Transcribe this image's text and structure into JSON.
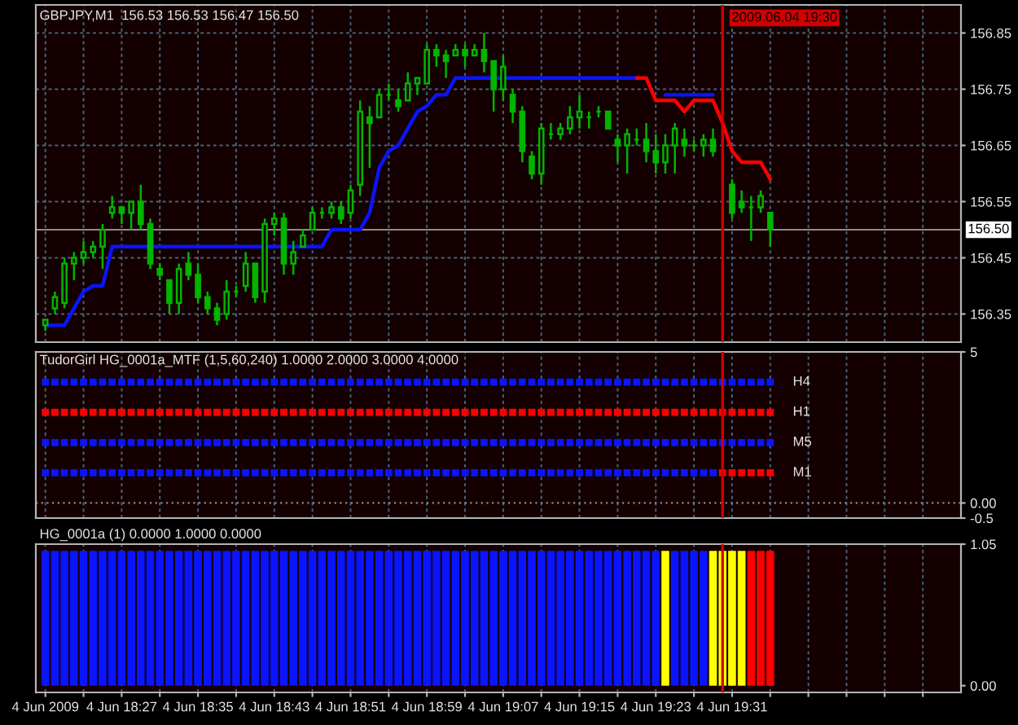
{
  "chart_data": [
    {
      "type": "candlestick",
      "title": "GBPJPY,M1  156.53 156.53 156.47 156.50",
      "x": [
        "2009-06-04T18:19",
        "2009-06-04T18:20",
        "2009-06-04T18:21",
        "2009-06-04T18:22",
        "2009-06-04T18:23",
        "2009-06-04T18:24",
        "2009-06-04T18:25",
        "2009-06-04T18:26",
        "2009-06-04T18:27",
        "2009-06-04T18:28",
        "2009-06-04T18:29",
        "2009-06-04T18:30",
        "2009-06-04T18:31",
        "2009-06-04T18:32",
        "2009-06-04T18:33",
        "2009-06-04T18:34",
        "2009-06-04T18:35",
        "2009-06-04T18:36",
        "2009-06-04T18:37",
        "2009-06-04T18:38",
        "2009-06-04T18:39",
        "2009-06-04T18:40",
        "2009-06-04T18:41",
        "2009-06-04T18:42",
        "2009-06-04T18:43",
        "2009-06-04T18:44",
        "2009-06-04T18:45",
        "2009-06-04T18:46",
        "2009-06-04T18:47",
        "2009-06-04T18:48",
        "2009-06-04T18:49",
        "2009-06-04T18:50",
        "2009-06-04T18:51",
        "2009-06-04T18:52",
        "2009-06-04T18:53",
        "2009-06-04T18:54",
        "2009-06-04T18:55",
        "2009-06-04T18:56",
        "2009-06-04T18:57",
        "2009-06-04T18:58",
        "2009-06-04T18:59",
        "2009-06-04T19:00",
        "2009-06-04T19:01",
        "2009-06-04T19:02",
        "2009-06-04T19:03",
        "2009-06-04T19:04",
        "2009-06-04T19:05",
        "2009-06-04T19:06",
        "2009-06-04T19:07",
        "2009-06-04T19:08",
        "2009-06-04T19:09",
        "2009-06-04T19:10",
        "2009-06-04T19:11",
        "2009-06-04T19:12",
        "2009-06-04T19:13",
        "2009-06-04T19:14",
        "2009-06-04T19:15",
        "2009-06-04T19:16",
        "2009-06-04T19:17",
        "2009-06-04T19:18",
        "2009-06-04T19:19",
        "2009-06-04T19:20",
        "2009-06-04T19:21",
        "2009-06-04T19:22",
        "2009-06-04T19:23",
        "2009-06-04T19:24",
        "2009-06-04T19:25",
        "2009-06-04T19:26",
        "2009-06-04T19:27",
        "2009-06-04T19:28",
        "2009-06-04T19:29",
        "2009-06-04T19:30",
        "2009-06-04T19:31",
        "2009-06-04T19:32",
        "2009-06-04T19:33",
        "2009-06-04T19:34",
        "2009-06-04T19:35"
      ],
      "ohlc": [
        [
          156.33,
          156.34,
          156.32,
          156.34
        ],
        [
          156.36,
          156.39,
          156.35,
          156.38
        ],
        [
          156.37,
          156.45,
          156.36,
          156.44
        ],
        [
          156.44,
          156.46,
          156.41,
          156.45
        ],
        [
          156.45,
          156.48,
          156.44,
          156.46
        ],
        [
          156.46,
          156.48,
          156.45,
          156.47
        ],
        [
          156.47,
          156.51,
          156.43,
          156.5
        ],
        [
          156.53,
          156.56,
          156.52,
          156.54
        ],
        [
          156.54,
          156.54,
          156.51,
          156.53
        ],
        [
          156.53,
          156.55,
          156.5,
          156.55
        ],
        [
          156.55,
          156.58,
          156.5,
          156.51
        ],
        [
          156.51,
          156.52,
          156.43,
          156.44
        ],
        [
          156.43,
          156.44,
          156.41,
          156.42
        ],
        [
          156.41,
          156.41,
          156.35,
          156.37
        ],
        [
          156.37,
          156.44,
          156.35,
          156.43
        ],
        [
          156.44,
          156.46,
          156.41,
          156.42
        ],
        [
          156.42,
          156.44,
          156.37,
          156.38
        ],
        [
          156.38,
          156.39,
          156.35,
          156.36
        ],
        [
          156.36,
          156.37,
          156.33,
          156.34
        ],
        [
          156.35,
          156.41,
          156.34,
          156.39
        ],
        [
          156.39,
          156.4,
          156.38,
          156.39
        ],
        [
          156.4,
          156.46,
          156.39,
          156.44
        ],
        [
          156.44,
          156.44,
          156.37,
          156.38
        ],
        [
          156.39,
          156.52,
          156.37,
          156.51
        ],
        [
          156.51,
          156.53,
          156.49,
          156.52
        ],
        [
          156.52,
          156.53,
          156.42,
          156.44
        ],
        [
          156.44,
          156.48,
          156.42,
          156.46
        ],
        [
          156.47,
          156.5,
          156.47,
          156.49
        ],
        [
          156.5,
          156.54,
          156.5,
          156.53
        ],
        [
          156.53,
          156.54,
          156.52,
          156.53
        ],
        [
          156.53,
          156.55,
          156.52,
          156.54
        ],
        [
          156.54,
          156.55,
          156.51,
          156.52
        ],
        [
          156.53,
          156.58,
          156.52,
          156.57
        ],
        [
          156.58,
          156.73,
          156.56,
          156.71
        ],
        [
          156.7,
          156.72,
          156.61,
          156.69
        ],
        [
          156.7,
          156.75,
          156.7,
          156.74
        ],
        [
          156.74,
          156.76,
          156.73,
          156.74
        ],
        [
          156.73,
          156.75,
          156.71,
          156.72
        ],
        [
          156.73,
          156.78,
          156.73,
          156.76
        ],
        [
          156.76,
          156.77,
          156.74,
          156.77
        ],
        [
          156.76,
          156.83,
          156.76,
          156.82
        ],
        [
          156.82,
          156.83,
          156.79,
          156.81
        ],
        [
          156.81,
          156.82,
          156.77,
          156.8
        ],
        [
          156.81,
          156.83,
          156.81,
          156.82
        ],
        [
          156.82,
          156.83,
          156.79,
          156.81
        ],
        [
          156.81,
          156.83,
          156.81,
          156.82
        ],
        [
          156.82,
          156.85,
          156.78,
          156.8
        ],
        [
          156.8,
          156.8,
          156.71,
          156.75
        ],
        [
          156.75,
          156.81,
          156.73,
          156.79
        ],
        [
          156.74,
          156.75,
          156.69,
          156.71
        ],
        [
          156.71,
          156.72,
          156.62,
          156.64
        ],
        [
          156.63,
          156.64,
          156.59,
          156.6
        ],
        [
          156.6,
          156.69,
          156.58,
          156.68
        ],
        [
          156.67,
          156.69,
          156.66,
          156.67
        ],
        [
          156.67,
          156.69,
          156.66,
          156.68
        ],
        [
          156.68,
          156.72,
          156.67,
          156.7
        ],
        [
          156.7,
          156.74,
          156.68,
          156.71
        ],
        [
          156.7,
          156.71,
          156.68,
          156.7
        ],
        [
          156.71,
          156.72,
          156.7,
          156.71
        ],
        [
          156.71,
          156.71,
          156.68,
          156.68
        ],
        [
          156.66,
          156.67,
          156.62,
          156.65
        ],
        [
          156.65,
          156.68,
          156.6,
          156.67
        ],
        [
          156.66,
          156.68,
          156.65,
          156.66
        ],
        [
          156.66,
          156.69,
          156.62,
          156.64
        ],
        [
          156.64,
          156.67,
          156.6,
          156.62
        ],
        [
          156.62,
          156.67,
          156.6,
          156.65
        ],
        [
          156.65,
          156.69,
          156.6,
          156.68
        ],
        [
          156.66,
          156.68,
          156.63,
          156.65
        ],
        [
          156.65,
          156.66,
          156.64,
          156.65
        ],
        [
          156.65,
          156.67,
          156.63,
          156.66
        ],
        [
          156.66,
          156.68,
          156.63,
          156.64
        ],
        null,
        [
          156.58,
          156.59,
          156.52,
          156.53
        ],
        [
          156.55,
          156.57,
          156.53,
          156.54
        ],
        [
          156.54,
          156.56,
          156.48,
          156.54
        ],
        [
          156.54,
          156.57,
          156.53,
          156.56
        ],
        [
          156.53,
          156.53,
          156.47,
          156.5
        ]
      ],
      "color": "#00b400",
      "series": [
        {
          "type": "line",
          "color": "#0a14ff",
          "values": [
            156.33,
            156.33,
            156.33,
            156.36,
            156.39,
            156.4,
            156.4,
            156.47,
            156.47,
            156.47,
            156.47,
            156.47,
            156.47,
            156.47,
            156.47,
            156.47,
            156.47,
            156.47,
            156.47,
            156.47,
            156.47,
            156.47,
            156.47,
            156.47,
            156.47,
            156.47,
            156.47,
            156.47,
            156.47,
            156.47,
            156.5,
            156.5,
            156.5,
            156.5,
            156.53,
            156.61,
            156.64,
            156.65,
            156.68,
            156.71,
            156.72,
            156.74,
            156.74,
            156.77,
            156.77,
            156.77,
            156.77,
            156.77,
            156.77,
            156.77,
            156.77,
            156.77,
            156.77,
            156.77,
            156.77,
            156.77,
            156.77,
            156.77,
            156.77,
            156.77,
            156.77,
            156.77,
            156.77,
            null,
            null,
            156.74,
            156.74,
            156.74,
            156.74,
            156.74,
            156.74,
            null,
            null,
            null,
            null,
            null,
            null
          ]
        },
        {
          "type": "line",
          "color": "#ff0000",
          "values": [
            null,
            null,
            null,
            null,
            null,
            null,
            null,
            null,
            null,
            null,
            null,
            null,
            null,
            null,
            null,
            null,
            null,
            null,
            null,
            null,
            null,
            null,
            null,
            null,
            null,
            null,
            null,
            null,
            null,
            null,
            null,
            null,
            null,
            null,
            null,
            null,
            null,
            null,
            null,
            null,
            null,
            null,
            null,
            null,
            null,
            null,
            null,
            null,
            null,
            null,
            null,
            null,
            null,
            null,
            null,
            null,
            null,
            null,
            null,
            null,
            null,
            null,
            156.77,
            156.77,
            156.73,
            156.73,
            156.73,
            156.71,
            156.73,
            156.73,
            156.73,
            156.69,
            156.64,
            156.62,
            156.62,
            156.62,
            156.59
          ]
        }
      ],
      "xlim": [
        "2009-06-04T18:18",
        "2009-06-04T19:55"
      ],
      "xticks": [
        {
          "value": "2009-06-04T18:19",
          "label": null
        },
        {
          "value": "2009-06-04T18:23",
          "label": null
        },
        {
          "value": "2009-06-04T18:27",
          "label": null
        },
        {
          "value": "2009-06-04T18:31",
          "label": null
        },
        {
          "value": "2009-06-04T18:35",
          "label": null
        },
        {
          "value": "2009-06-04T18:39",
          "label": null
        },
        {
          "value": "2009-06-04T18:43",
          "label": null
        },
        {
          "value": "2009-06-04T18:47",
          "label": null
        },
        {
          "value": "2009-06-04T18:51",
          "label": null
        },
        {
          "value": "2009-06-04T18:55",
          "label": null
        },
        {
          "value": "2009-06-04T18:59",
          "label": null
        },
        {
          "value": "2009-06-04T19:03",
          "label": null
        },
        {
          "value": "2009-06-04T19:07",
          "label": null
        },
        {
          "value": "2009-06-04T19:11",
          "label": null
        },
        {
          "value": "2009-06-04T19:15",
          "label": null
        },
        {
          "value": "2009-06-04T19:19",
          "label": null
        },
        {
          "value": "2009-06-04T19:23",
          "label": null
        },
        {
          "value": "2009-06-04T19:27",
          "label": null
        },
        {
          "value": "2009-06-04T19:31",
          "label": null
        },
        {
          "value": "2009-06-04T19:35",
          "label": null
        },
        {
          "value": "2009-06-04T19:39",
          "label": null
        },
        {
          "value": "2009-06-04T19:43",
          "label": null
        },
        {
          "value": "2009-06-04T19:47",
          "label": null
        },
        {
          "value": "2009-06-04T19:51",
          "label": null
        }
      ],
      "ylim": [
        156.3,
        156.9
      ],
      "yticks": [
        156.35,
        156.45,
        156.55,
        156.65,
        156.75,
        156.85
      ],
      "grid": true,
      "ref_lines": [
        {
          "axis": "y",
          "value": 156.5,
          "label": "156.50",
          "color": "#8c8c8c"
        },
        {
          "axis": "x",
          "value": "2009-06-04T19:30",
          "label": "2009.06.04 19:30",
          "color": "#d20000"
        }
      ],
      "tick_labels": "y"
    },
    {
      "type": "scatter",
      "title": "TudorGirl HG_0001a_MTF (1,5,60,240) 1.0000 2.0000 3.0000 4.0000",
      "x": [
        "2009-06-04T18:19",
        "2009-06-04T18:20",
        "2009-06-04T18:21",
        "2009-06-04T18:22",
        "2009-06-04T18:23",
        "2009-06-04T18:24",
        "2009-06-04T18:25",
        "2009-06-04T18:26",
        "2009-06-04T18:27",
        "2009-06-04T18:28",
        "2009-06-04T18:29",
        "2009-06-04T18:30",
        "2009-06-04T18:31",
        "2009-06-04T18:32",
        "2009-06-04T18:33",
        "2009-06-04T18:34",
        "2009-06-04T18:35",
        "2009-06-04T18:36",
        "2009-06-04T18:37",
        "2009-06-04T18:38",
        "2009-06-04T18:39",
        "2009-06-04T18:40",
        "2009-06-04T18:41",
        "2009-06-04T18:42",
        "2009-06-04T18:43",
        "2009-06-04T18:44",
        "2009-06-04T18:45",
        "2009-06-04T18:46",
        "2009-06-04T18:47",
        "2009-06-04T18:48",
        "2009-06-04T18:49",
        "2009-06-04T18:50",
        "2009-06-04T18:51",
        "2009-06-04T18:52",
        "2009-06-04T18:53",
        "2009-06-04T18:54",
        "2009-06-04T18:55",
        "2009-06-04T18:56",
        "2009-06-04T18:57",
        "2009-06-04T18:58",
        "2009-06-04T18:59",
        "2009-06-04T19:00",
        "2009-06-04T19:01",
        "2009-06-04T19:02",
        "2009-06-04T19:03",
        "2009-06-04T19:04",
        "2009-06-04T19:05",
        "2009-06-04T19:06",
        "2009-06-04T19:07",
        "2009-06-04T19:08",
        "2009-06-04T19:09",
        "2009-06-04T19:10",
        "2009-06-04T19:11",
        "2009-06-04T19:12",
        "2009-06-04T19:13",
        "2009-06-04T19:14",
        "2009-06-04T19:15",
        "2009-06-04T19:16",
        "2009-06-04T19:17",
        "2009-06-04T19:18",
        "2009-06-04T19:19",
        "2009-06-04T19:20",
        "2009-06-04T19:21",
        "2009-06-04T19:22",
        "2009-06-04T19:23",
        "2009-06-04T19:24",
        "2009-06-04T19:25",
        "2009-06-04T19:26",
        "2009-06-04T19:27",
        "2009-06-04T19:28",
        "2009-06-04T19:29",
        "2009-06-04T19:30",
        "2009-06-04T19:31",
        "2009-06-04T19:32",
        "2009-06-04T19:33",
        "2009-06-04T19:34",
        "2009-06-04T19:35"
      ],
      "series": [
        {
          "name": "H4",
          "color": "#0a14ff",
          "values": [
            4,
            4,
            4,
            4,
            4,
            4,
            4,
            4,
            4,
            4,
            4,
            4,
            4,
            4,
            4,
            4,
            4,
            4,
            4,
            4,
            4,
            4,
            4,
            4,
            4,
            4,
            4,
            4,
            4,
            4,
            4,
            4,
            4,
            4,
            4,
            4,
            4,
            4,
            4,
            4,
            4,
            4,
            4,
            4,
            4,
            4,
            4,
            4,
            4,
            4,
            4,
            4,
            4,
            4,
            4,
            4,
            4,
            4,
            4,
            4,
            4,
            4,
            4,
            4,
            4,
            4,
            4,
            4,
            4,
            4,
            4,
            4,
            4,
            4,
            4,
            4,
            4
          ]
        },
        {
          "name": "H1",
          "color": "#ff0000",
          "values": [
            3,
            3,
            3,
            3,
            3,
            3,
            3,
            3,
            3,
            3,
            3,
            3,
            3,
            3,
            3,
            3,
            3,
            3,
            3,
            3,
            3,
            3,
            3,
            3,
            3,
            3,
            3,
            3,
            3,
            3,
            3,
            3,
            3,
            3,
            3,
            3,
            3,
            3,
            3,
            3,
            3,
            3,
            3,
            3,
            3,
            3,
            3,
            3,
            3,
            3,
            3,
            3,
            3,
            3,
            3,
            3,
            3,
            3,
            3,
            3,
            3,
            3,
            3,
            3,
            3,
            3,
            3,
            3,
            3,
            3,
            3,
            3,
            3,
            3,
            3,
            3,
            3
          ]
        },
        {
          "name": "M5",
          "color": "#0a14ff",
          "values": [
            2,
            2,
            2,
            2,
            2,
            2,
            2,
            2,
            2,
            2,
            2,
            2,
            2,
            2,
            2,
            2,
            2,
            2,
            2,
            2,
            2,
            2,
            2,
            2,
            2,
            2,
            2,
            2,
            2,
            2,
            2,
            2,
            2,
            2,
            2,
            2,
            2,
            2,
            2,
            2,
            2,
            2,
            2,
            2,
            2,
            2,
            2,
            2,
            2,
            2,
            2,
            2,
            2,
            2,
            2,
            2,
            2,
            2,
            2,
            2,
            2,
            2,
            2,
            2,
            2,
            2,
            2,
            2,
            2,
            2,
            2,
            2,
            2,
            2,
            2,
            2,
            2
          ]
        },
        {
          "name": "M1",
          "values": [
            1,
            1,
            1,
            1,
            1,
            1,
            1,
            1,
            1,
            1,
            1,
            1,
            1,
            1,
            1,
            1,
            1,
            1,
            1,
            1,
            1,
            1,
            1,
            1,
            1,
            1,
            1,
            1,
            1,
            1,
            1,
            1,
            1,
            1,
            1,
            1,
            1,
            1,
            1,
            1,
            1,
            1,
            1,
            1,
            1,
            1,
            1,
            1,
            1,
            1,
            1,
            1,
            1,
            1,
            1,
            1,
            1,
            1,
            1,
            1,
            1,
            1,
            1,
            1,
            1,
            1,
            1,
            1,
            1,
            1,
            1,
            1,
            1,
            1,
            1,
            1,
            1
          ],
          "colors": [
            "#0a14ff",
            "#0a14ff",
            "#0a14ff",
            "#0a14ff",
            "#0a14ff",
            "#0a14ff",
            "#0a14ff",
            "#0a14ff",
            "#0a14ff",
            "#0a14ff",
            "#0a14ff",
            "#0a14ff",
            "#0a14ff",
            "#0a14ff",
            "#0a14ff",
            "#0a14ff",
            "#0a14ff",
            "#0a14ff",
            "#0a14ff",
            "#0a14ff",
            "#0a14ff",
            "#0a14ff",
            "#0a14ff",
            "#0a14ff",
            "#0a14ff",
            "#0a14ff",
            "#0a14ff",
            "#0a14ff",
            "#0a14ff",
            "#0a14ff",
            "#0a14ff",
            "#0a14ff",
            "#0a14ff",
            "#0a14ff",
            "#0a14ff",
            "#0a14ff",
            "#0a14ff",
            "#0a14ff",
            "#0a14ff",
            "#0a14ff",
            "#0a14ff",
            "#0a14ff",
            "#0a14ff",
            "#0a14ff",
            "#0a14ff",
            "#0a14ff",
            "#0a14ff",
            "#0a14ff",
            "#0a14ff",
            "#0a14ff",
            "#0a14ff",
            "#0a14ff",
            "#0a14ff",
            "#0a14ff",
            "#0a14ff",
            "#0a14ff",
            "#0a14ff",
            "#0a14ff",
            "#0a14ff",
            "#0a14ff",
            "#0a14ff",
            "#0a14ff",
            "#0a14ff",
            "#0a14ff",
            "#0a14ff",
            "#0a14ff",
            "#0a14ff",
            "#0a14ff",
            "#0a14ff",
            "#0a14ff",
            "#0a14ff",
            "#ff0000",
            "#ff0000",
            "#ff0000",
            "#ff0000",
            "#ff0000",
            "#ff0000"
          ]
        }
      ],
      "marker": "square",
      "xlim": [
        "2009-06-04T18:18",
        "2009-06-04T19:55"
      ],
      "xticks": [
        {
          "value": "2009-06-04T18:19",
          "label": null
        },
        {
          "value": "2009-06-04T18:23",
          "label": null
        },
        {
          "value": "2009-06-04T18:27",
          "label": null
        },
        {
          "value": "2009-06-04T18:31",
          "label": null
        },
        {
          "value": "2009-06-04T18:35",
          "label": null
        },
        {
          "value": "2009-06-04T18:39",
          "label": null
        },
        {
          "value": "2009-06-04T18:43",
          "label": null
        },
        {
          "value": "2009-06-04T18:47",
          "label": null
        },
        {
          "value": "2009-06-04T18:51",
          "label": null
        },
        {
          "value": "2009-06-04T18:55",
          "label": null
        },
        {
          "value": "2009-06-04T18:59",
          "label": null
        },
        {
          "value": "2009-06-04T19:03",
          "label": null
        },
        {
          "value": "2009-06-04T19:07",
          "label": null
        },
        {
          "value": "2009-06-04T19:11",
          "label": null
        },
        {
          "value": "2009-06-04T19:15",
          "label": null
        },
        {
          "value": "2009-06-04T19:19",
          "label": null
        },
        {
          "value": "2009-06-04T19:23",
          "label": null
        },
        {
          "value": "2009-06-04T19:27",
          "label": null
        },
        {
          "value": "2009-06-04T19:31",
          "label": null
        },
        {
          "value": "2009-06-04T19:35",
          "label": null
        },
        {
          "value": "2009-06-04T19:39",
          "label": null
        },
        {
          "value": "2009-06-04T19:43",
          "label": null
        },
        {
          "value": "2009-06-04T19:47",
          "label": null
        },
        {
          "value": "2009-06-04T19:51",
          "label": null
        }
      ],
      "ylim": [
        -0.5,
        5
      ],
      "yticks": [
        5,
        {
          "value": 0,
          "label": "0.00"
        },
        -0.5
      ],
      "grid": "x",
      "ref_lines": [
        {
          "axis": "y",
          "value": 0,
          "color": "#8c8c8c",
          "line_style": "dotted"
        },
        {
          "axis": "x",
          "value": "2009-06-04T19:30",
          "color": "#d20000"
        }
      ],
      "tick_labels": "y"
    },
    {
      "type": "bar",
      "title": "HG_0001a (1) 0.0000 1.0000 0.0000",
      "x": [
        "2009-06-04T18:19",
        "2009-06-04T18:20",
        "2009-06-04T18:21",
        "2009-06-04T18:22",
        "2009-06-04T18:23",
        "2009-06-04T18:24",
        "2009-06-04T18:25",
        "2009-06-04T18:26",
        "2009-06-04T18:27",
        "2009-06-04T18:28",
        "2009-06-04T18:29",
        "2009-06-04T18:30",
        "2009-06-04T18:31",
        "2009-06-04T18:32",
        "2009-06-04T18:33",
        "2009-06-04T18:34",
        "2009-06-04T18:35",
        "2009-06-04T18:36",
        "2009-06-04T18:37",
        "2009-06-04T18:38",
        "2009-06-04T18:39",
        "2009-06-04T18:40",
        "2009-06-04T18:41",
        "2009-06-04T18:42",
        "2009-06-04T18:43",
        "2009-06-04T18:44",
        "2009-06-04T18:45",
        "2009-06-04T18:46",
        "2009-06-04T18:47",
        "2009-06-04T18:48",
        "2009-06-04T18:49",
        "2009-06-04T18:50",
        "2009-06-04T18:51",
        "2009-06-04T18:52",
        "2009-06-04T18:53",
        "2009-06-04T18:54",
        "2009-06-04T18:55",
        "2009-06-04T18:56",
        "2009-06-04T18:57",
        "2009-06-04T18:58",
        "2009-06-04T18:59",
        "2009-06-04T19:00",
        "2009-06-04T19:01",
        "2009-06-04T19:02",
        "2009-06-04T19:03",
        "2009-06-04T19:04",
        "2009-06-04T19:05",
        "2009-06-04T19:06",
        "2009-06-04T19:07",
        "2009-06-04T19:08",
        "2009-06-04T19:09",
        "2009-06-04T19:10",
        "2009-06-04T19:11",
        "2009-06-04T19:12",
        "2009-06-04T19:13",
        "2009-06-04T19:14",
        "2009-06-04T19:15",
        "2009-06-04T19:16",
        "2009-06-04T19:17",
        "2009-06-04T19:18",
        "2009-06-04T19:19",
        "2009-06-04T19:20",
        "2009-06-04T19:21",
        "2009-06-04T19:22",
        "2009-06-04T19:23",
        "2009-06-04T19:24",
        "2009-06-04T19:25",
        "2009-06-04T19:26",
        "2009-06-04T19:27",
        "2009-06-04T19:28",
        "2009-06-04T19:29",
        "2009-06-04T19:30",
        "2009-06-04T19:31",
        "2009-06-04T19:32",
        "2009-06-04T19:33",
        "2009-06-04T19:34",
        "2009-06-04T19:35"
      ],
      "values": [
        1,
        1,
        1,
        1,
        1,
        1,
        1,
        1,
        1,
        1,
        1,
        1,
        1,
        1,
        1,
        1,
        1,
        1,
        1,
        1,
        1,
        1,
        1,
        1,
        1,
        1,
        1,
        1,
        1,
        1,
        1,
        1,
        1,
        1,
        1,
        1,
        1,
        1,
        1,
        1,
        1,
        1,
        1,
        1,
        1,
        1,
        1,
        1,
        1,
        1,
        1,
        1,
        1,
        1,
        1,
        1,
        1,
        1,
        1,
        1,
        1,
        1,
        1,
        1,
        1,
        1,
        1,
        1,
        1,
        1,
        1,
        1,
        1,
        1,
        1,
        1,
        1
      ],
      "colors": [
        "#0a14ff",
        "#0a14ff",
        "#0a14ff",
        "#0a14ff",
        "#0a14ff",
        "#0a14ff",
        "#0a14ff",
        "#0a14ff",
        "#0a14ff",
        "#0a14ff",
        "#0a14ff",
        "#0a14ff",
        "#0a14ff",
        "#0a14ff",
        "#0a14ff",
        "#0a14ff",
        "#0a14ff",
        "#0a14ff",
        "#0a14ff",
        "#0a14ff",
        "#0a14ff",
        "#0a14ff",
        "#0a14ff",
        "#0a14ff",
        "#0a14ff",
        "#0a14ff",
        "#0a14ff",
        "#0a14ff",
        "#0a14ff",
        "#0a14ff",
        "#0a14ff",
        "#0a14ff",
        "#0a14ff",
        "#0a14ff",
        "#0a14ff",
        "#0a14ff",
        "#0a14ff",
        "#0a14ff",
        "#0a14ff",
        "#0a14ff",
        "#0a14ff",
        "#0a14ff",
        "#0a14ff",
        "#0a14ff",
        "#0a14ff",
        "#0a14ff",
        "#0a14ff",
        "#0a14ff",
        "#0a14ff",
        "#0a14ff",
        "#0a14ff",
        "#0a14ff",
        "#0a14ff",
        "#0a14ff",
        "#0a14ff",
        "#0a14ff",
        "#0a14ff",
        "#0a14ff",
        "#0a14ff",
        "#0a14ff",
        "#0a14ff",
        "#0a14ff",
        "#0a14ff",
        "#0a14ff",
        "#0a14ff",
        "#ffff00",
        "#0a14ff",
        "#0a14ff",
        "#0a14ff",
        "#0a14ff",
        "#ffff00",
        "#ffff00",
        "#ffff00",
        "#ffff00",
        "#ff0000",
        "#ff0000",
        "#ff0000"
      ],
      "xlim": [
        "2009-06-04T18:18",
        "2009-06-04T19:55"
      ],
      "xticks": [
        {
          "value": "2009-06-04T18:19",
          "label": "4 Jun 2009"
        },
        {
          "value": "2009-06-04T18:23",
          "label": null
        },
        {
          "value": "2009-06-04T18:27",
          "label": "4 Jun 18:27"
        },
        {
          "value": "2009-06-04T18:31",
          "label": null
        },
        {
          "value": "2009-06-04T18:35",
          "label": "4 Jun 18:35"
        },
        {
          "value": "2009-06-04T18:39",
          "label": null
        },
        {
          "value": "2009-06-04T18:43",
          "label": "4 Jun 18:43"
        },
        {
          "value": "2009-06-04T18:47",
          "label": null
        },
        {
          "value": "2009-06-04T18:51",
          "label": "4 Jun 18:51"
        },
        {
          "value": "2009-06-04T18:55",
          "label": null
        },
        {
          "value": "2009-06-04T18:59",
          "label": "4 Jun 18:59"
        },
        {
          "value": "2009-06-04T19:03",
          "label": null
        },
        {
          "value": "2009-06-04T19:07",
          "label": "4 Jun 19:07"
        },
        {
          "value": "2009-06-04T19:11",
          "label": null
        },
        {
          "value": "2009-06-04T19:15",
          "label": "4 Jun 19:15"
        },
        {
          "value": "2009-06-04T19:19",
          "label": null
        },
        {
          "value": "2009-06-04T19:23",
          "label": "4 Jun 19:23"
        },
        {
          "value": "2009-06-04T19:27",
          "label": null
        },
        {
          "value": "2009-06-04T19:31",
          "label": "4 Jun 19:31"
        },
        {
          "value": "2009-06-04T19:35",
          "label": null
        },
        {
          "value": "2009-06-04T19:39",
          "label": null
        },
        {
          "value": "2009-06-04T19:43",
          "label": null
        },
        {
          "value": "2009-06-04T19:47",
          "label": null
        },
        {
          "value": "2009-06-04T19:51",
          "label": null
        }
      ],
      "ylim": [
        -0.05,
        1.05
      ],
      "yticks": [
        1.05,
        {
          "value": 0,
          "label": "0.00"
        }
      ],
      "grid": "x",
      "ref_lines": [
        {
          "axis": "x",
          "value": "2009-06-04T19:30",
          "color": "#d20000"
        }
      ]
    }
  ]
}
